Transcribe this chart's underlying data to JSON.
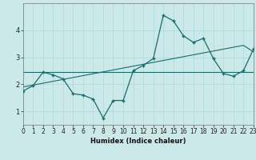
{
  "xlabel": "Humidex (Indice chaleur)",
  "background_color": "#cce9e9",
  "line_color": "#1a6b6b",
  "grid_color": "#aad8d8",
  "x_values": [
    0,
    1,
    2,
    3,
    4,
    5,
    6,
    7,
    8,
    9,
    10,
    11,
    12,
    13,
    14,
    15,
    16,
    17,
    18,
    19,
    20,
    21,
    22,
    23
  ],
  "main_line_y": [
    1.75,
    1.95,
    2.45,
    2.35,
    2.2,
    1.65,
    1.6,
    1.45,
    0.75,
    1.4,
    1.4,
    2.5,
    2.7,
    2.95,
    4.55,
    4.35,
    3.8,
    3.55,
    3.7,
    2.95,
    2.4,
    2.3,
    2.5,
    3.3
  ],
  "trend_flat_y": [
    2.45,
    2.45,
    2.45,
    2.45,
    2.45,
    2.45,
    2.45,
    2.45,
    2.45,
    2.45,
    2.45,
    2.45,
    2.45,
    2.45,
    2.45,
    2.45,
    2.45,
    2.45,
    2.45,
    2.45,
    2.45,
    2.45,
    2.45,
    2.45
  ],
  "trend_rise_y": [
    1.9,
    1.97,
    2.04,
    2.11,
    2.18,
    2.25,
    2.32,
    2.39,
    2.46,
    2.53,
    2.6,
    2.67,
    2.74,
    2.81,
    2.88,
    2.95,
    3.02,
    3.09,
    3.16,
    3.23,
    3.3,
    3.37,
    3.44,
    3.2
  ],
  "xlim": [
    0,
    23
  ],
  "ylim": [
    0.5,
    5.0
  ],
  "yticks": [
    1,
    2,
    3,
    4
  ],
  "xticks": [
    0,
    1,
    2,
    3,
    4,
    5,
    6,
    7,
    8,
    9,
    10,
    11,
    12,
    13,
    14,
    15,
    16,
    17,
    18,
    19,
    20,
    21,
    22,
    23
  ],
  "tick_fontsize": 5.5,
  "xlabel_fontsize": 6.0
}
